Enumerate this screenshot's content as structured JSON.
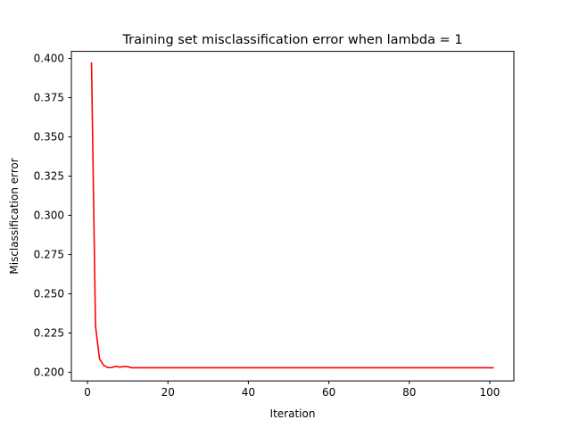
{
  "chart_data": {
    "type": "line",
    "title": "Training set misclassification error when lambda = 1",
    "xlabel": "Iteration",
    "ylabel": "Misclassification error",
    "xlim": [
      -4,
      106
    ],
    "ylim": [
      0.1945,
      0.4045
    ],
    "xticks": [
      0,
      20,
      40,
      60,
      80,
      100
    ],
    "xtick_labels": [
      "0",
      "20",
      "40",
      "60",
      "80",
      "100"
    ],
    "yticks": [
      0.2,
      0.225,
      0.25,
      0.275,
      0.3,
      0.325,
      0.35,
      0.375,
      0.4
    ],
    "ytick_labels": [
      "0.200",
      "0.225",
      "0.250",
      "0.275",
      "0.300",
      "0.325",
      "0.350",
      "0.375",
      "0.400"
    ],
    "grid": false,
    "series": [
      {
        "color": "#ff0000",
        "x": [
          1,
          2,
          3,
          4,
          5,
          6,
          7,
          8,
          9,
          10,
          11,
          12,
          101
        ],
        "y": [
          0.3975,
          0.2295,
          0.2085,
          0.2045,
          0.203,
          0.203,
          0.2038,
          0.2033,
          0.2036,
          0.2036,
          0.2029,
          0.2029,
          0.2029
        ]
      }
    ]
  }
}
